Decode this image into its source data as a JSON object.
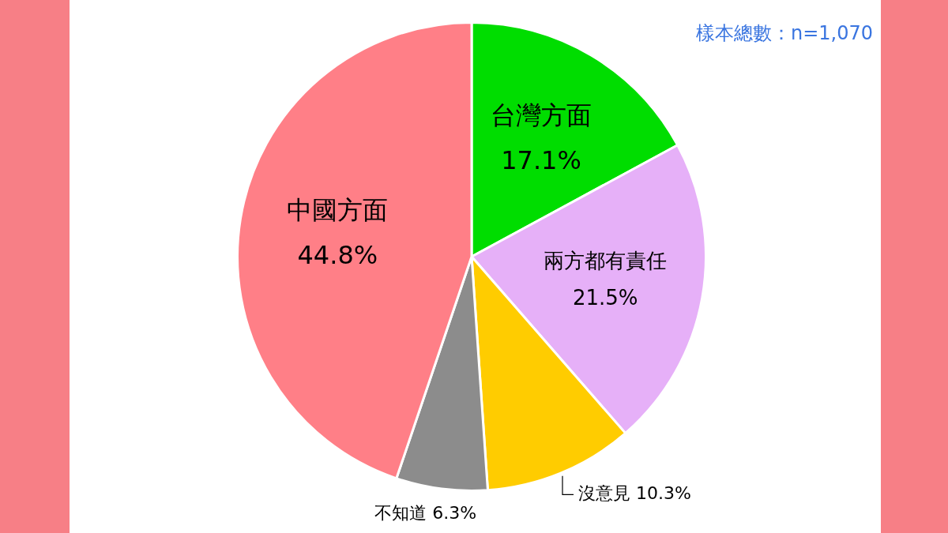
{
  "chart_data": {
    "type": "pie",
    "categories": [
      "台灣方面",
      "兩方都有責任",
      "沒意見",
      "不知道",
      "中國方面"
    ],
    "values": [
      17.1,
      21.5,
      10.3,
      6.3,
      44.8
    ],
    "colors": [
      "#00dd00",
      "#e6b0f8",
      "#ffcc00",
      "#8c8c8c",
      "#ff7f87"
    ],
    "value_labels": [
      "17.1%",
      "21.5%",
      "10.3%",
      "6.3%",
      "44.8%"
    ],
    "annotations": [
      "樣本總數：n=1,070"
    ],
    "legend": false
  }
}
